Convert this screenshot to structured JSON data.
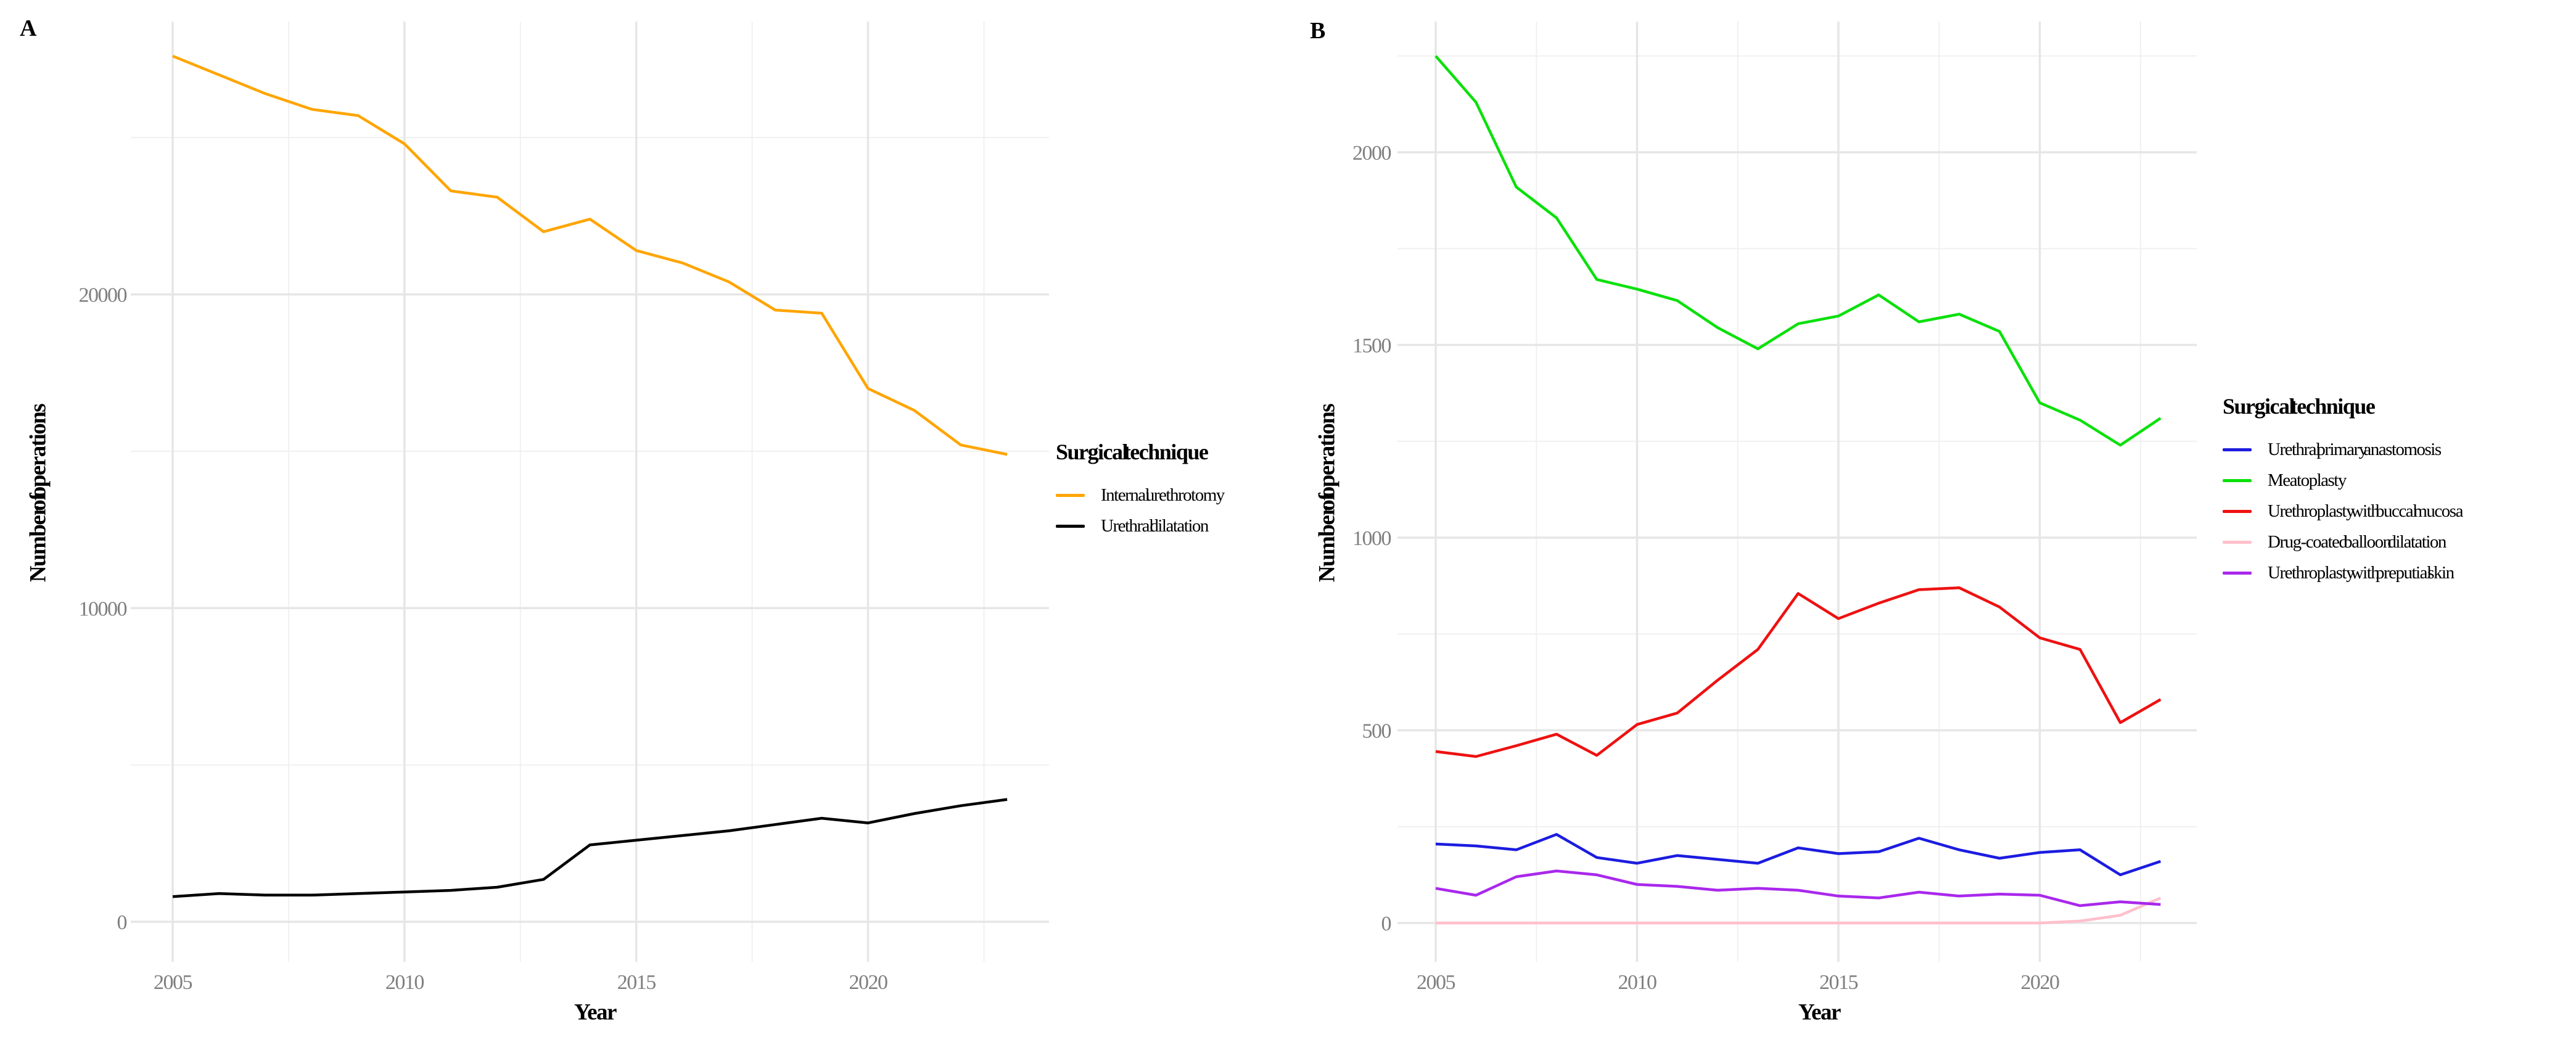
{
  "figure_background": "#ffffff",
  "grid_major_color": "#e6e6e6",
  "grid_minor_color": "#f0f0f0",
  "tick_label_color": "#7f7f7f",
  "chart_data": [
    {
      "type": "line",
      "panel_label": "A",
      "xlabel": "Year",
      "ylabel": "Number of operations",
      "legend_title": "Surgical technique",
      "legend_position": "right",
      "grid": true,
      "x": [
        2005,
        2006,
        2007,
        2008,
        2009,
        2010,
        2011,
        2012,
        2013,
        2014,
        2015,
        2016,
        2017,
        2018,
        2019,
        2020,
        2021,
        2022,
        2023
      ],
      "x_ticks": [
        2005,
        2010,
        2015,
        2020
      ],
      "x_minor_ticks": [
        2007.5,
        2012.5,
        2017.5,
        2022.5
      ],
      "y_ticks": [
        0,
        10000,
        20000
      ],
      "y_minor_ticks": [
        5000,
        15000,
        25000
      ],
      "ylim": [
        -600,
        28900
      ],
      "xlim": [
        2004.1,
        2023.9
      ],
      "series": [
        {
          "name": "Internal urethrotomy",
          "color": "#FFA500",
          "values": [
            27600,
            27000,
            26400,
            25900,
            25700,
            24800,
            23300,
            23100,
            22000,
            22400,
            21400,
            21000,
            20400,
            19500,
            19400,
            17000,
            16300,
            15200,
            14900
          ]
        },
        {
          "name": "Urethral dilatation",
          "color": "#000000",
          "values": [
            800,
            900,
            850,
            850,
            900,
            950,
            1000,
            1100,
            1350,
            2450,
            2600,
            2750,
            2900,
            3100,
            3300,
            3150,
            3450,
            3700,
            3900
          ]
        }
      ]
    },
    {
      "type": "line",
      "panel_label": "B",
      "xlabel": "Year",
      "ylabel": "Number of operations",
      "legend_title": "Surgical technique",
      "legend_position": "right",
      "grid": true,
      "x": [
        2005,
        2006,
        2007,
        2008,
        2009,
        2010,
        2011,
        2012,
        2013,
        2014,
        2015,
        2016,
        2017,
        2018,
        2019,
        2020,
        2021,
        2022,
        2023
      ],
      "x_ticks": [
        2005,
        2010,
        2015,
        2020
      ],
      "x_minor_ticks": [
        2007.5,
        2012.5,
        2017.5,
        2022.5
      ],
      "y_ticks": [
        0,
        500,
        1000,
        1500,
        2000
      ],
      "y_minor_ticks": [
        250,
        750,
        1250,
        1750,
        2250
      ],
      "ylim": [
        -50,
        2340
      ],
      "xlim": [
        2004.1,
        2023.9
      ],
      "series": [
        {
          "name": "Urethral primary anastomosis",
          "color": "#1C1CE0",
          "values": [
            205,
            200,
            190,
            230,
            170,
            155,
            175,
            165,
            155,
            195,
            180,
            185,
            220,
            190,
            168,
            183,
            190,
            125,
            160
          ]
        },
        {
          "name": "Meatoplasty",
          "color": "#0BE00B",
          "values": [
            2250,
            2130,
            1910,
            1830,
            1670,
            1645,
            1615,
            1545,
            1490,
            1555,
            1575,
            1630,
            1560,
            1580,
            1535,
            1350,
            1305,
            1240,
            1310
          ]
        },
        {
          "name": "Urethroplasty with buccal mucosa",
          "color": "#EE1111",
          "values": [
            445,
            432,
            460,
            490,
            435,
            515,
            545,
            630,
            710,
            855,
            790,
            830,
            865,
            870,
            820,
            740,
            710,
            520,
            580
          ]
        },
        {
          "name": "Drug-coated balloon dilatation",
          "color": "#FFC0CB",
          "values": [
            0,
            0,
            0,
            0,
            0,
            0,
            0,
            0,
            0,
            0,
            0,
            0,
            0,
            0,
            0,
            0,
            5,
            20,
            65
          ]
        },
        {
          "name": "Urethroplasty with preputial skin",
          "color": "#A928EC",
          "values": [
            90,
            72,
            120,
            135,
            125,
            100,
            95,
            85,
            90,
            85,
            70,
            65,
            80,
            70,
            75,
            72,
            45,
            55,
            48
          ]
        }
      ]
    }
  ]
}
